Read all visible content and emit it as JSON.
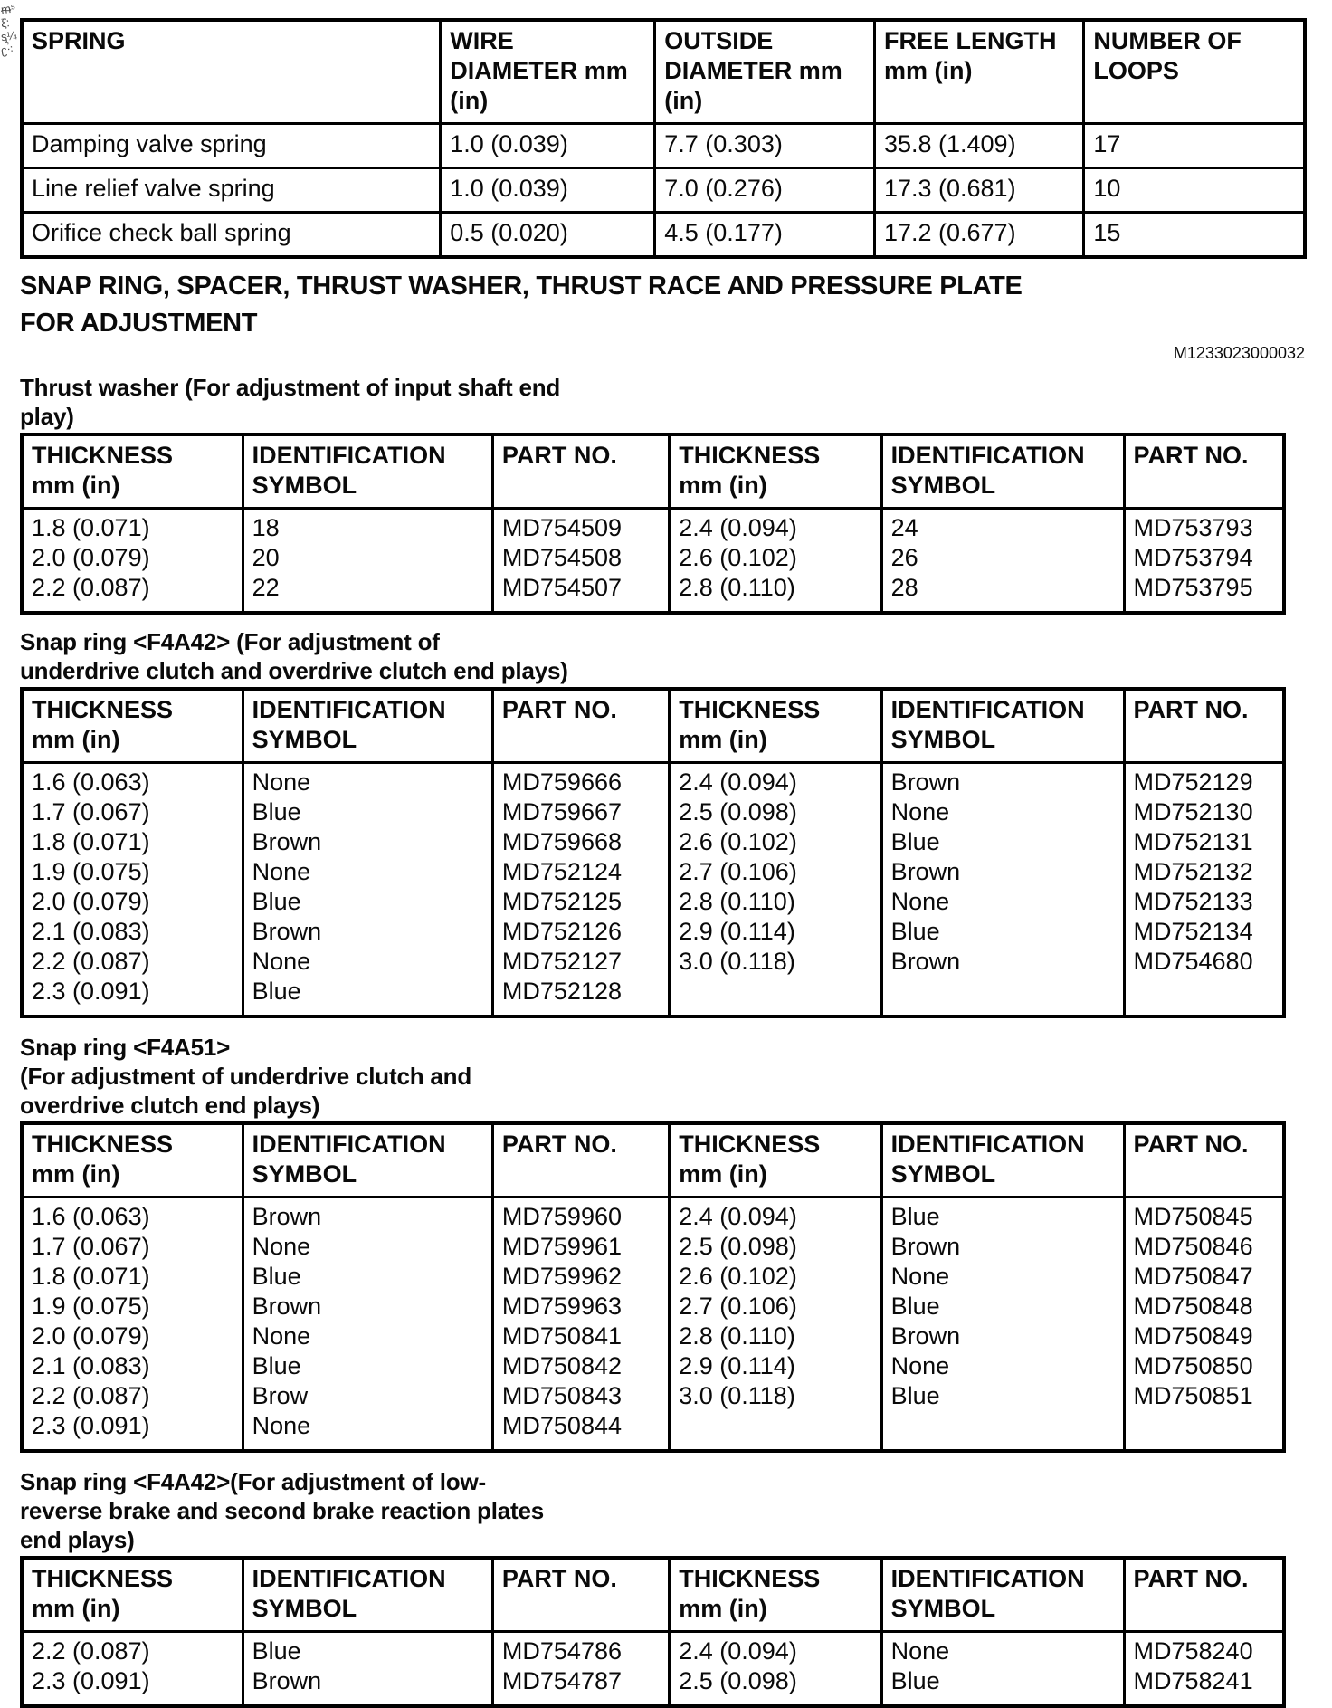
{
  "scan_marks": [
    "ᵯ⁵",
    "ξ̇:",
    "ᶊ¼",
    "ʗ̕⁖"
  ],
  "spring_table": {
    "headers": [
      [
        "SPRING"
      ],
      [
        "WIRE",
        "DIAMETER mm",
        "(in)"
      ],
      [
        "OUTSIDE",
        "DIAMETER mm",
        "(in)"
      ],
      [
        "FREE LENGTH",
        "mm (in)"
      ],
      [
        "NUMBER OF",
        "LOOPS"
      ]
    ],
    "rows": [
      [
        "Damping valve spring",
        "1.0 (0.039)",
        "7.7 (0.303)",
        "35.8 (1.409)",
        "17"
      ],
      [
        "Line relief valve spring",
        "1.0 (0.039)",
        "7.0 (0.276)",
        "17.3 (0.681)",
        "10"
      ],
      [
        "Orifice check ball spring",
        "0.5 (0.020)",
        "4.5 (0.177)",
        "17.2 (0.677)",
        "15"
      ]
    ]
  },
  "main_heading": {
    "lines": [
      "SNAP RING, SPACER, THRUST WASHER, THRUST RACE AND PRESSURE PLATE",
      "FOR ADJUSTMENT"
    ],
    "doc_code": "M1233023000032"
  },
  "thrust_washer": {
    "title_lines": [
      "Thrust washer (For adjustment of input shaft end",
      "play)"
    ],
    "headers": [
      [
        "THICKNESS",
        "mm (in)"
      ],
      [
        "IDENTIFICATION",
        "SYMBOL"
      ],
      [
        "PART NO."
      ],
      [
        "THICKNESS",
        "mm (in)"
      ],
      [
        "IDENTIFICATION",
        "SYMBOL"
      ],
      [
        "PART NO."
      ]
    ],
    "left": {
      "thickness": [
        "1.8 (0.071)",
        "2.0 (0.079)",
        "2.2 (0.087)"
      ],
      "symbol": [
        "18",
        "20",
        "22"
      ],
      "part_no": [
        "MD754509",
        "MD754508",
        "MD754507"
      ]
    },
    "right": {
      "thickness": [
        "2.4 (0.094)",
        "2.6 (0.102)",
        "2.8 (0.110)"
      ],
      "symbol": [
        "24",
        "26",
        "28"
      ],
      "part_no": [
        "MD753793",
        "MD753794",
        "MD753795"
      ]
    }
  },
  "snap_ring_f4a42": {
    "title_lines": [
      "Snap ring <F4A42> (For adjustment of",
      "underdrive clutch and overdrive clutch end plays)"
    ],
    "headers": [
      [
        "THICKNESS",
        "mm (in)"
      ],
      [
        "IDENTIFICATION",
        "SYMBOL"
      ],
      [
        "PART NO."
      ],
      [
        "THICKNESS",
        "mm (in)"
      ],
      [
        "IDENTIFICATION",
        "SYMBOL"
      ],
      [
        "PART NO."
      ]
    ],
    "left": {
      "thickness": [
        "1.6 (0.063)",
        "1.7 (0.067)",
        "1.8 (0.071)",
        "1.9 (0.075)",
        "2.0 (0.079)",
        "2.1 (0.083)",
        "2.2 (0.087)",
        "2.3 (0.091)"
      ],
      "symbol": [
        "None",
        "Blue",
        "Brown",
        "None",
        "Blue",
        "Brown",
        "None",
        "Blue"
      ],
      "part_no": [
        "MD759666",
        "MD759667",
        "MD759668",
        "MD752124",
        "MD752125",
        "MD752126",
        "MD752127",
        "MD752128"
      ]
    },
    "right": {
      "thickness": [
        "2.4 (0.094)",
        "2.5 (0.098)",
        "2.6 (0.102)",
        "2.7 (0.106)",
        "2.8 (0.110)",
        "2.9 (0.114)",
        "3.0 (0.118)"
      ],
      "symbol": [
        "Brown",
        "None",
        "Blue",
        "Brown",
        "None",
        "Blue",
        "Brown"
      ],
      "part_no": [
        "MD752129",
        "MD752130",
        "MD752131",
        "MD752132",
        "MD752133",
        "MD752134",
        "MD754680"
      ]
    }
  },
  "snap_ring_f4a51": {
    "title_lines": [
      "Snap ring <F4A51>",
      "(For adjustment of underdrive clutch and",
      "overdrive clutch end plays)"
    ],
    "headers": [
      [
        "THICKNESS",
        "mm (in)"
      ],
      [
        "IDENTIFICATION",
        "SYMBOL"
      ],
      [
        "PART NO."
      ],
      [
        "THICKNESS",
        "mm (in)"
      ],
      [
        "IDENTIFICATION",
        "SYMBOL"
      ],
      [
        "PART NO."
      ]
    ],
    "left": {
      "thickness": [
        "1.6 (0.063)",
        "1.7 (0.067)",
        "1.8 (0.071)",
        "1.9 (0.075)",
        "2.0 (0.079)",
        "2.1 (0.083)",
        "2.2 (0.087)",
        "2.3 (0.091)"
      ],
      "symbol": [
        "Brown",
        "None",
        "Blue",
        "Brown",
        "None",
        "Blue",
        "Brow",
        "None"
      ],
      "part_no": [
        "MD759960",
        "MD759961",
        "MD759962",
        "MD759963",
        "MD750841",
        "MD750842",
        "MD750843",
        "MD750844"
      ]
    },
    "right": {
      "thickness": [
        "2.4 (0.094)",
        "2.5 (0.098)",
        "2.6 (0.102)",
        "2.7 (0.106)",
        "2.8 (0.110)",
        "2.9 (0.114)",
        "3.0 (0.118)"
      ],
      "symbol": [
        "Blue",
        "Brown",
        "None",
        "Blue",
        "Brown",
        "None",
        "Blue"
      ],
      "part_no": [
        "MD750845",
        "MD750846",
        "MD750847",
        "MD750848",
        "MD750849",
        "MD750850",
        "MD750851"
      ]
    }
  },
  "snap_ring_f4a42_low_reverse": {
    "title_lines": [
      "Snap ring <F4A42>(For adjustment of low-",
      "reverse brake and second brake reaction plates",
      "end plays)"
    ],
    "headers": [
      [
        "THICKNESS",
        "mm (in)"
      ],
      [
        "IDENTIFICATION",
        "SYMBOL"
      ],
      [
        "PART NO."
      ],
      [
        "THICKNESS",
        "mm (in)"
      ],
      [
        "IDENTIFICATION",
        "SYMBOL"
      ],
      [
        "PART NO."
      ]
    ],
    "left": {
      "thickness": [
        "2.2 (0.087)",
        "2.3 (0.091)"
      ],
      "symbol": [
        "Blue",
        "Brown"
      ],
      "part_no": [
        "MD754786",
        "MD754787"
      ]
    },
    "right": {
      "thickness": [
        "2.4 (0.094)",
        "2.5 (0.098)"
      ],
      "symbol": [
        "None",
        "Blue"
      ],
      "part_no": [
        "MD758240",
        "MD758241"
      ]
    }
  }
}
